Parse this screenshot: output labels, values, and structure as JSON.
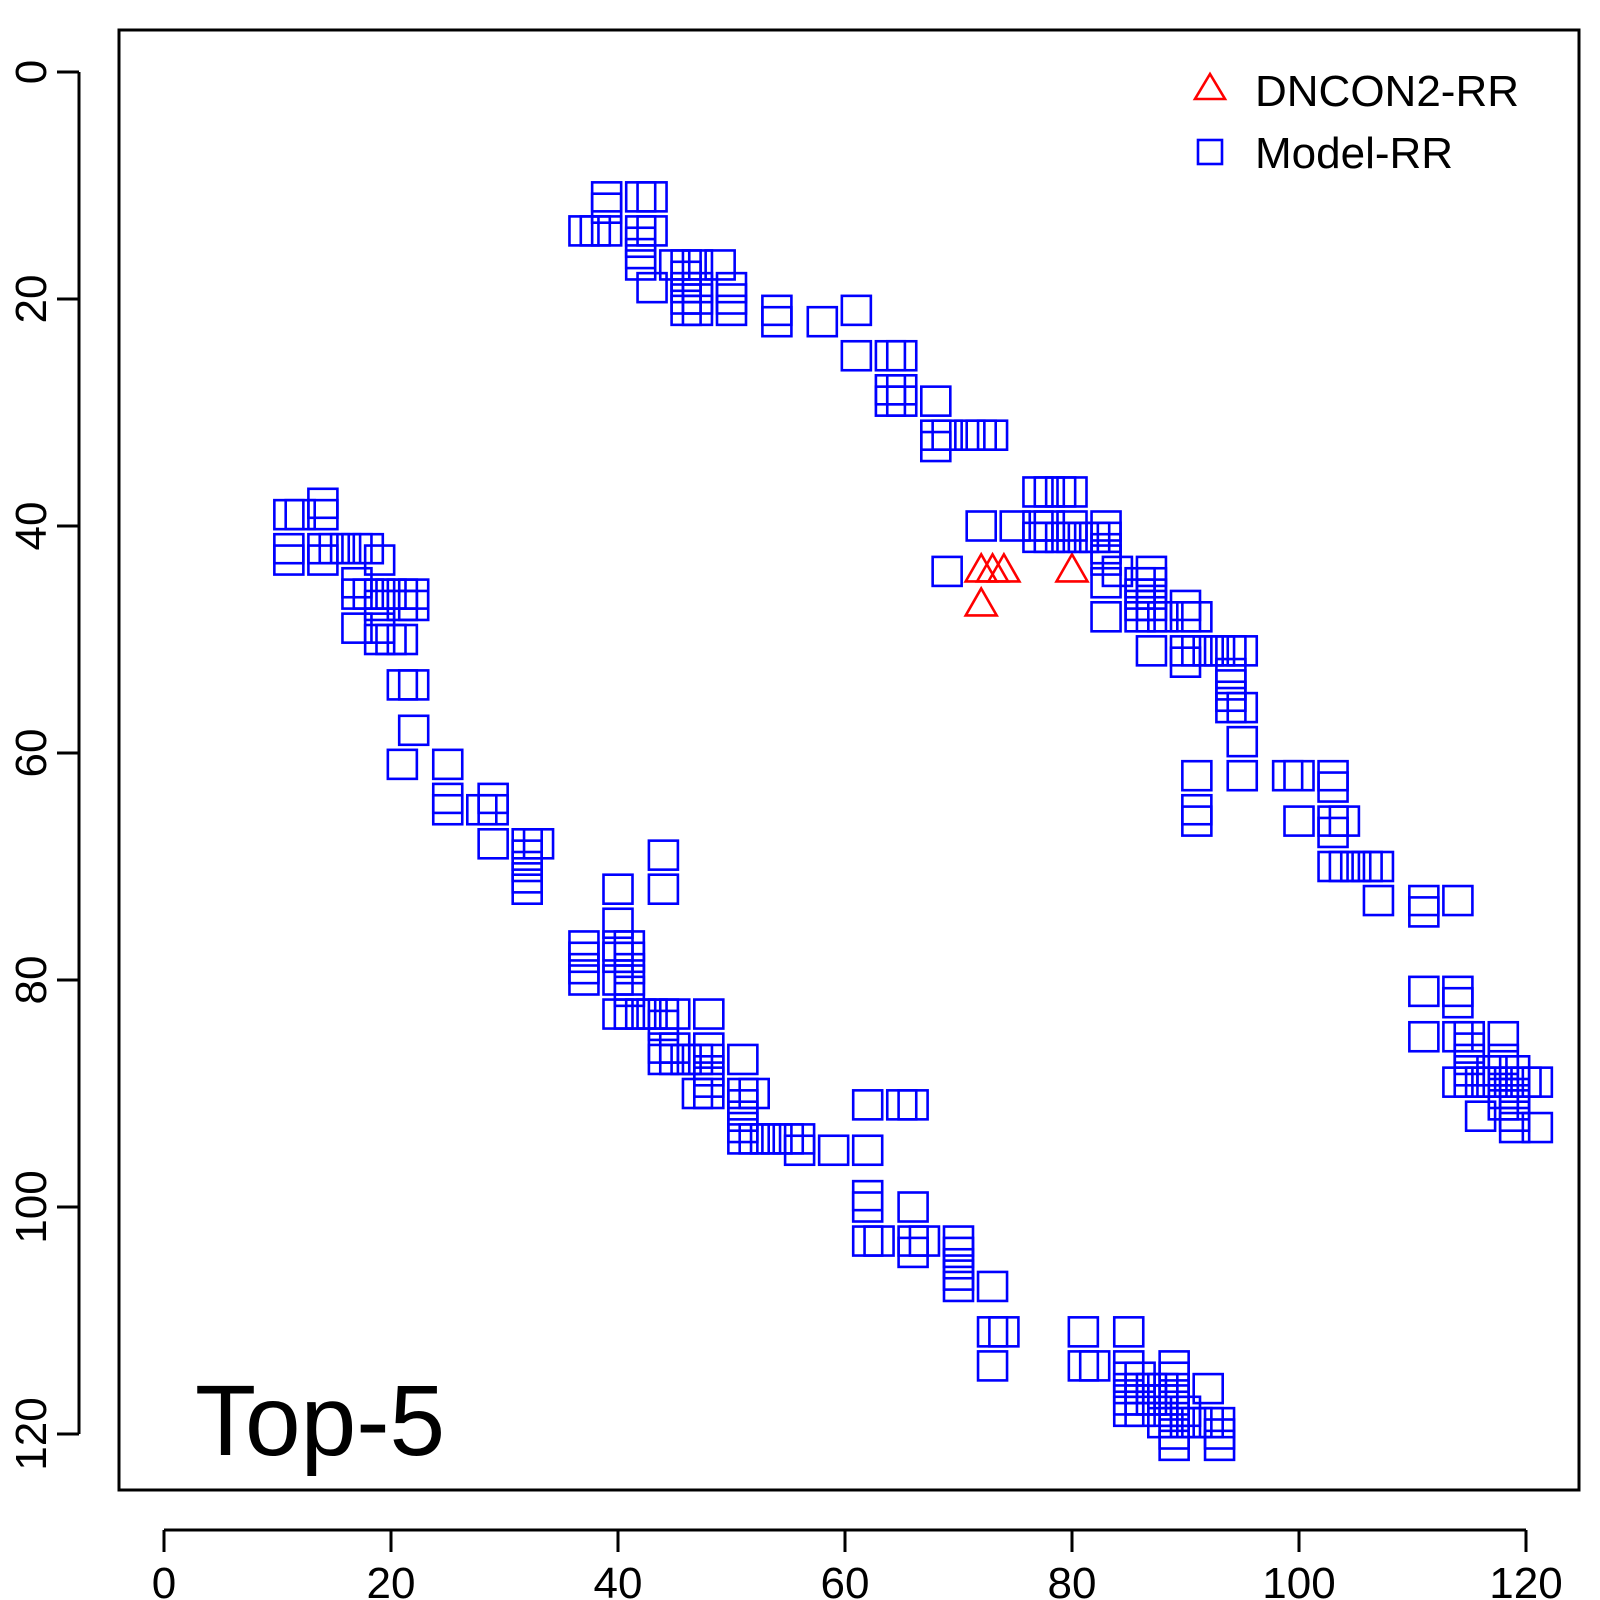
{
  "chart_data": {
    "type": "scatter",
    "title": "",
    "xlabel": "",
    "ylabel": "",
    "xlim": [
      -4,
      126
    ],
    "ylim": [
      126,
      -4
    ],
    "y_inverted": true,
    "x_ticks": [
      0,
      20,
      40,
      60,
      80,
      100,
      120
    ],
    "y_ticks": [
      0,
      20,
      40,
      60,
      80,
      100,
      120
    ],
    "grid": false,
    "legend_position": "top-right",
    "annotation": "Top-5",
    "series": [
      {
        "name": "DNCON2-RR",
        "marker": "triangle",
        "color": "#ff0000",
        "points": [
          [
            72,
            44
          ],
          [
            73,
            44
          ],
          [
            74,
            44
          ],
          [
            80,
            44
          ],
          [
            72,
            47
          ]
        ]
      },
      {
        "name": "Model-RR",
        "marker": "square",
        "color": "#0000ff",
        "points": [
          [
            39,
            11
          ],
          [
            39,
            12
          ],
          [
            42,
            11
          ],
          [
            43,
            11
          ],
          [
            38,
            14
          ],
          [
            37,
            14
          ],
          [
            39,
            14
          ],
          [
            42,
            14
          ],
          [
            43,
            14
          ],
          [
            42,
            15
          ],
          [
            42,
            16
          ],
          [
            42,
            17
          ],
          [
            43,
            19
          ],
          [
            45,
            17
          ],
          [
            46,
            17
          ],
          [
            47,
            17
          ],
          [
            49,
            17
          ],
          [
            46,
            18
          ],
          [
            46,
            19
          ],
          [
            47,
            19
          ],
          [
            46,
            20
          ],
          [
            47,
            20
          ],
          [
            50,
            19
          ],
          [
            50,
            20
          ],
          [
            46,
            21
          ],
          [
            47,
            21
          ],
          [
            50,
            21
          ],
          [
            54,
            21
          ],
          [
            54,
            22
          ],
          [
            58,
            22
          ],
          [
            61,
            21
          ],
          [
            61,
            25
          ],
          [
            64,
            25
          ],
          [
            65,
            25
          ],
          [
            64,
            28
          ],
          [
            65,
            28
          ],
          [
            64,
            29
          ],
          [
            65,
            29
          ],
          [
            68,
            29
          ],
          [
            68,
            32
          ],
          [
            69,
            32
          ],
          [
            71,
            32
          ],
          [
            72,
            32
          ],
          [
            73,
            32
          ],
          [
            68,
            33
          ],
          [
            77,
            37
          ],
          [
            78,
            37
          ],
          [
            79,
            37
          ],
          [
            80,
            37
          ],
          [
            72,
            40
          ],
          [
            75,
            40
          ],
          [
            77,
            40
          ],
          [
            78,
            40
          ],
          [
            80,
            40
          ],
          [
            83,
            40
          ],
          [
            77,
            41
          ],
          [
            78,
            41
          ],
          [
            79,
            41
          ],
          [
            80,
            41
          ],
          [
            81,
            41
          ],
          [
            82,
            41
          ],
          [
            83,
            41
          ],
          [
            83,
            42
          ],
          [
            83,
            43
          ],
          [
            69,
            44
          ],
          [
            84,
            44
          ],
          [
            87,
            44
          ],
          [
            83,
            45
          ],
          [
            86,
            45
          ],
          [
            87,
            45
          ],
          [
            86,
            46
          ],
          [
            87,
            46
          ],
          [
            86,
            47
          ],
          [
            87,
            47
          ],
          [
            90,
            47
          ],
          [
            83,
            48
          ],
          [
            86,
            48
          ],
          [
            87,
            48
          ],
          [
            88,
            48
          ],
          [
            90,
            48
          ],
          [
            91,
            48
          ],
          [
            87,
            51
          ],
          [
            90,
            51
          ],
          [
            91,
            51
          ],
          [
            92,
            51
          ],
          [
            93,
            51
          ],
          [
            94,
            51
          ],
          [
            95,
            51
          ],
          [
            90,
            52
          ],
          [
            94,
            53
          ],
          [
            94,
            54
          ],
          [
            94,
            55
          ],
          [
            94,
            56
          ],
          [
            95,
            56
          ],
          [
            95,
            59
          ],
          [
            91,
            62
          ],
          [
            95,
            62
          ],
          [
            99,
            62
          ],
          [
            100,
            62
          ],
          [
            103,
            62
          ],
          [
            103,
            63
          ],
          [
            91,
            65
          ],
          [
            91,
            66
          ],
          [
            100,
            66
          ],
          [
            103,
            66
          ],
          [
            104,
            66
          ],
          [
            103,
            67
          ],
          [
            103,
            70
          ],
          [
            104,
            70
          ],
          [
            105,
            70
          ],
          [
            106,
            70
          ],
          [
            107,
            70
          ],
          [
            107,
            73
          ],
          [
            111,
            73
          ],
          [
            114,
            73
          ],
          [
            111,
            74
          ],
          [
            111,
            81
          ],
          [
            114,
            81
          ],
          [
            114,
            82
          ],
          [
            111,
            85
          ],
          [
            114,
            85
          ],
          [
            115,
            85
          ],
          [
            118,
            85
          ],
          [
            115,
            86
          ],
          [
            115,
            87
          ],
          [
            118,
            87
          ],
          [
            115,
            88
          ],
          [
            117,
            88
          ],
          [
            118,
            88
          ],
          [
            119,
            88
          ],
          [
            114,
            89
          ],
          [
            115,
            89
          ],
          [
            116,
            89
          ],
          [
            117,
            89
          ],
          [
            118,
            89
          ],
          [
            119,
            89
          ],
          [
            120,
            89
          ],
          [
            121,
            89
          ],
          [
            118,
            90
          ],
          [
            119,
            90
          ],
          [
            118,
            91
          ],
          [
            119,
            91
          ],
          [
            116,
            92
          ],
          [
            119,
            92
          ],
          [
            119,
            93
          ],
          [
            121,
            93
          ],
          [
            11,
            39
          ],
          [
            12,
            39
          ],
          [
            14,
            38
          ],
          [
            14,
            39
          ],
          [
            11,
            42
          ],
          [
            14,
            42
          ],
          [
            15,
            42
          ],
          [
            16,
            42
          ],
          [
            17,
            42
          ],
          [
            18,
            42
          ],
          [
            11,
            43
          ],
          [
            14,
            43
          ],
          [
            19,
            43
          ],
          [
            17,
            45
          ],
          [
            17,
            46
          ],
          [
            18,
            46
          ],
          [
            19,
            46
          ],
          [
            20,
            46
          ],
          [
            21,
            46
          ],
          [
            22,
            46
          ],
          [
            19,
            47
          ],
          [
            21,
            47
          ],
          [
            22,
            47
          ],
          [
            17,
            49
          ],
          [
            19,
            49
          ],
          [
            19,
            50
          ],
          [
            20,
            50
          ],
          [
            21,
            50
          ],
          [
            21,
            54
          ],
          [
            22,
            54
          ],
          [
            22,
            58
          ],
          [
            21,
            61
          ],
          [
            25,
            61
          ],
          [
            25,
            64
          ],
          [
            25,
            65
          ],
          [
            28,
            65
          ],
          [
            29,
            64
          ],
          [
            29,
            65
          ],
          [
            29,
            68
          ],
          [
            32,
            68
          ],
          [
            33,
            68
          ],
          [
            32,
            69
          ],
          [
            32,
            70
          ],
          [
            32,
            71
          ],
          [
            32,
            72
          ],
          [
            44,
            69
          ],
          [
            40,
            72
          ],
          [
            44,
            72
          ],
          [
            40,
            75
          ],
          [
            37,
            77
          ],
          [
            40,
            77
          ],
          [
            41,
            77
          ],
          [
            37,
            78
          ],
          [
            40,
            78
          ],
          [
            41,
            78
          ],
          [
            37,
            79
          ],
          [
            41,
            79
          ],
          [
            37,
            80
          ],
          [
            40,
            80
          ],
          [
            41,
            80
          ],
          [
            41,
            81
          ],
          [
            40,
            83
          ],
          [
            41,
            83
          ],
          [
            42,
            83
          ],
          [
            43,
            83
          ],
          [
            44,
            83
          ],
          [
            45,
            83
          ],
          [
            48,
            83
          ],
          [
            44,
            84
          ],
          [
            44,
            86
          ],
          [
            45,
            86
          ],
          [
            48,
            86
          ],
          [
            44,
            87
          ],
          [
            45,
            87
          ],
          [
            46,
            87
          ],
          [
            47,
            87
          ],
          [
            48,
            87
          ],
          [
            51,
            87
          ],
          [
            48,
            88
          ],
          [
            48,
            89
          ],
          [
            47,
            90
          ],
          [
            48,
            90
          ],
          [
            51,
            90
          ],
          [
            52,
            90
          ],
          [
            51,
            91
          ],
          [
            51,
            92
          ],
          [
            51,
            93
          ],
          [
            51,
            94
          ],
          [
            52,
            94
          ],
          [
            53,
            94
          ],
          [
            54,
            94
          ],
          [
            55,
            94
          ],
          [
            56,
            94
          ],
          [
            56,
            95
          ],
          [
            59,
            95
          ],
          [
            62,
            95
          ],
          [
            62,
            91
          ],
          [
            65,
            91
          ],
          [
            66,
            91
          ],
          [
            62,
            99
          ],
          [
            62,
            100
          ],
          [
            66,
            100
          ],
          [
            62,
            103
          ],
          [
            63,
            103
          ],
          [
            66,
            103
          ],
          [
            67,
            103
          ],
          [
            66,
            104
          ],
          [
            70,
            103
          ],
          [
            70,
            104
          ],
          [
            70,
            105
          ],
          [
            70,
            106
          ],
          [
            70,
            107
          ],
          [
            73,
            107
          ],
          [
            73,
            111
          ],
          [
            74,
            111
          ],
          [
            73,
            114
          ],
          [
            81,
            111
          ],
          [
            85,
            111
          ],
          [
            81,
            114
          ],
          [
            82,
            114
          ],
          [
            85,
            114
          ],
          [
            85,
            115
          ],
          [
            86,
            115
          ],
          [
            89,
            114
          ],
          [
            89,
            115
          ],
          [
            85,
            116
          ],
          [
            86,
            116
          ],
          [
            87,
            116
          ],
          [
            88,
            116
          ],
          [
            89,
            116
          ],
          [
            92,
            116
          ],
          [
            85,
            117
          ],
          [
            86,
            117
          ],
          [
            87,
            117
          ],
          [
            88,
            117
          ],
          [
            89,
            117
          ],
          [
            85,
            118
          ],
          [
            86,
            118
          ],
          [
            88,
            118
          ],
          [
            89,
            118
          ],
          [
            90,
            118
          ],
          [
            88,
            119
          ],
          [
            89,
            119
          ],
          [
            90,
            119
          ],
          [
            91,
            119
          ],
          [
            92,
            119
          ],
          [
            93,
            119
          ],
          [
            89,
            120
          ],
          [
            93,
            120
          ],
          [
            89,
            121
          ],
          [
            93,
            121
          ]
        ]
      }
    ]
  }
}
